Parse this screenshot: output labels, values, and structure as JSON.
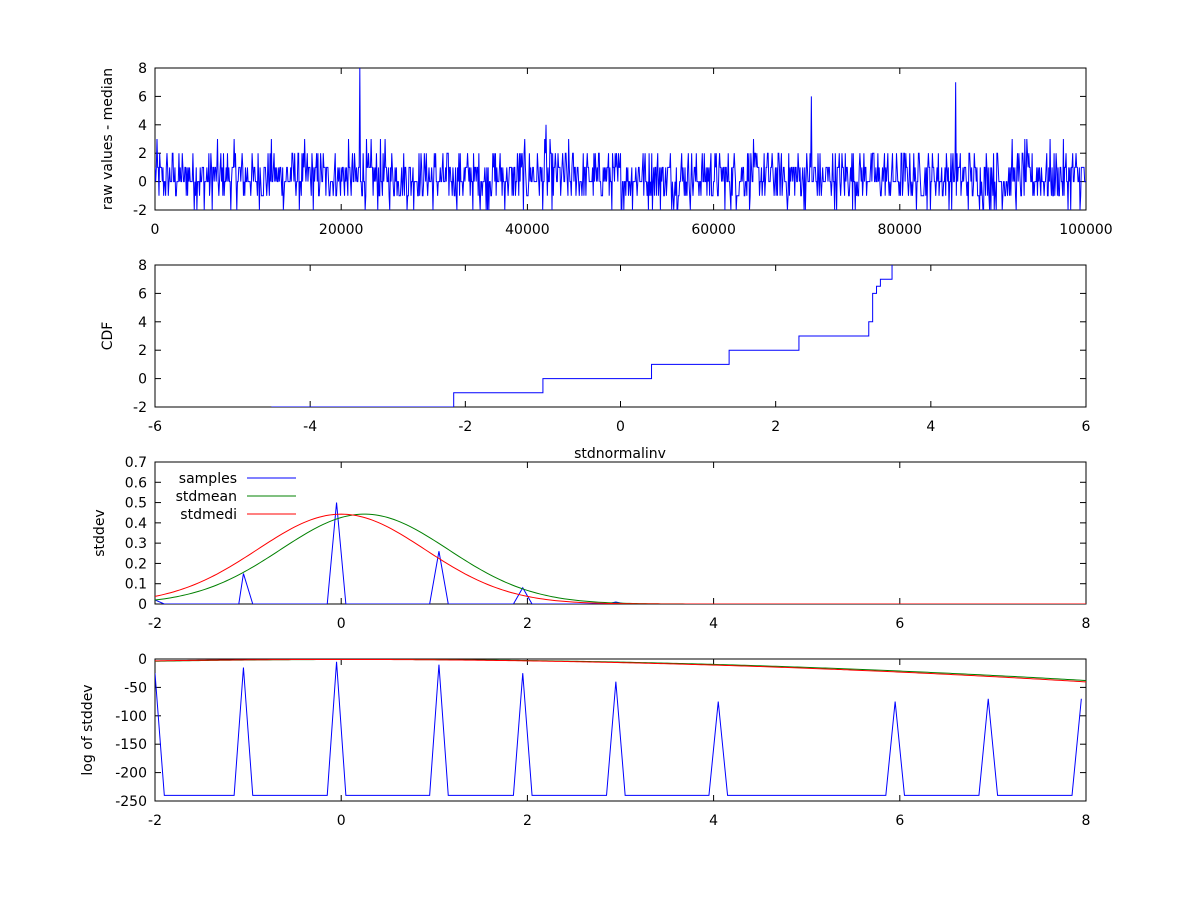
{
  "chart_data": [
    {
      "type": "line",
      "title": "",
      "xlabel": "",
      "ylabel": "raw values - median",
      "xlim": [
        0,
        100000
      ],
      "ylim": [
        -2,
        8
      ],
      "xticks": [
        0,
        20000,
        40000,
        60000,
        80000,
        100000
      ],
      "yticks": [
        -2,
        0,
        2,
        4,
        6,
        8
      ],
      "grid": false,
      "series": [
        {
          "color": "#0000ff",
          "noise_band": [
            -2,
            2
          ],
          "spikes": [
            {
              "x": 22000,
              "y": 8
            },
            {
              "x": 42000,
              "y": 4
            },
            {
              "x": 70500,
              "y": 6
            },
            {
              "x": 86000,
              "y": 7
            }
          ]
        }
      ]
    },
    {
      "type": "line",
      "title": "",
      "xlabel": "stdnormalinv",
      "ylabel": "CDF",
      "xlim": [
        -6,
        6
      ],
      "ylim": [
        -2,
        8
      ],
      "xticks": [
        -6,
        -4,
        -2,
        0,
        2,
        4,
        6
      ],
      "yticks": [
        -2,
        0,
        2,
        4,
        6,
        8
      ],
      "grid": false,
      "series": [
        {
          "color": "#0000ff",
          "step_points": [
            [
              -4.5,
              -2
            ],
            [
              -2.15,
              -2
            ],
            [
              -2.15,
              -1
            ],
            [
              -1.0,
              -1
            ],
            [
              -1.0,
              0
            ],
            [
              0.4,
              0
            ],
            [
              0.4,
              1
            ],
            [
              1.4,
              1
            ],
            [
              1.4,
              2
            ],
            [
              2.3,
              2
            ],
            [
              2.3,
              3
            ],
            [
              3.2,
              3
            ],
            [
              3.2,
              4
            ],
            [
              3.25,
              4
            ],
            [
              3.25,
              6
            ],
            [
              3.3,
              6
            ],
            [
              3.3,
              6.5
            ],
            [
              3.35,
              6.5
            ],
            [
              3.35,
              7
            ],
            [
              3.5,
              7
            ],
            [
              3.5,
              8
            ]
          ]
        }
      ]
    },
    {
      "type": "line",
      "title": "",
      "xlabel": "",
      "ylabel": "stddev",
      "xlim": [
        -2,
        8
      ],
      "ylim": [
        0,
        0.7
      ],
      "xticks": [
        -2,
        0,
        2,
        4,
        6,
        8
      ],
      "yticks": [
        0,
        0.1,
        0.2,
        0.3,
        0.4,
        0.5,
        0.6,
        0.7
      ],
      "grid": false,
      "legend": "top-left",
      "series": [
        {
          "name": "samples",
          "color": "#0000ff",
          "points": [
            [
              -2,
              0.02
            ],
            [
              -1.9,
              0
            ],
            [
              -1.1,
              0
            ],
            [
              -1.05,
              0.15
            ],
            [
              -0.95,
              0
            ],
            [
              -0.15,
              0
            ],
            [
              -0.05,
              0.5
            ],
            [
              0.05,
              0
            ],
            [
              0.95,
              0
            ],
            [
              1.05,
              0.26
            ],
            [
              1.15,
              0
            ],
            [
              1.85,
              0
            ],
            [
              1.95,
              0.08
            ],
            [
              2.05,
              0
            ],
            [
              2.85,
              0
            ],
            [
              2.95,
              0.01
            ],
            [
              3.05,
              0
            ],
            [
              8,
              0
            ]
          ]
        },
        {
          "name": "stdmean",
          "color": "#008000",
          "gaussian": {
            "mu": 0.25,
            "sigma": 0.9,
            "peak": 0.443
          }
        },
        {
          "name": "stdmedi",
          "color": "#ff0000",
          "gaussian": {
            "mu": 0.0,
            "sigma": 0.9,
            "peak": 0.443
          }
        }
      ]
    },
    {
      "type": "line",
      "title": "",
      "xlabel": "",
      "ylabel": "log of stddev",
      "xlim": [
        -2,
        8
      ],
      "ylim": [
        -250,
        0
      ],
      "xticks": [
        -2,
        0,
        2,
        4,
        6,
        8
      ],
      "yticks": [
        -250,
        -200,
        -150,
        -100,
        -50,
        0
      ],
      "grid": false,
      "series": [
        {
          "color": "#0000ff",
          "points": [
            [
              -2,
              -25
            ],
            [
              -1.9,
              -240
            ],
            [
              -1.15,
              -240
            ],
            [
              -1.05,
              -15
            ],
            [
              -0.95,
              -240
            ],
            [
              -0.15,
              -240
            ],
            [
              -0.05,
              -5
            ],
            [
              0.05,
              -240
            ],
            [
              0.95,
              -240
            ],
            [
              1.05,
              -10
            ],
            [
              1.15,
              -240
            ],
            [
              1.85,
              -240
            ],
            [
              1.95,
              -25
            ],
            [
              2.05,
              -240
            ],
            [
              2.85,
              -240
            ],
            [
              2.95,
              -40
            ],
            [
              3.05,
              -240
            ],
            [
              3.95,
              -240
            ],
            [
              4.05,
              -75
            ],
            [
              4.15,
              -240
            ],
            [
              5.85,
              -240
            ],
            [
              5.95,
              -75
            ],
            [
              6.05,
              -240
            ],
            [
              6.85,
              -240
            ],
            [
              6.95,
              -70
            ],
            [
              7.05,
              -240
            ],
            [
              7.85,
              -240
            ],
            [
              7.95,
              -70
            ]
          ]
        },
        {
          "color": "#008000",
          "log_gaussian": {
            "mu": 0.25,
            "sigma": 0.9,
            "peak": 0.443,
            "floor": -240
          }
        },
        {
          "color": "#ff0000",
          "log_gaussian": {
            "mu": 0.0,
            "sigma": 0.9,
            "peak": 0.443,
            "floor": -240
          }
        }
      ]
    }
  ]
}
